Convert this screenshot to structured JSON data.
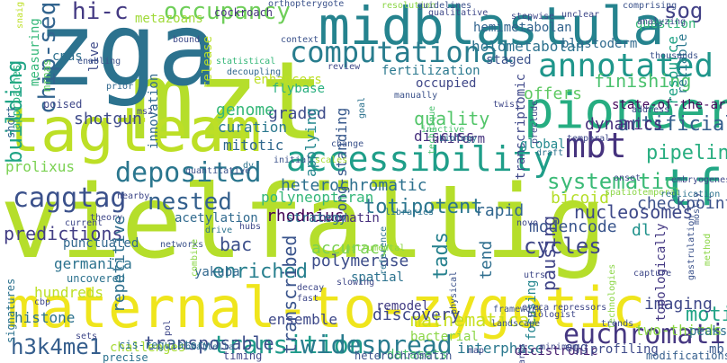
{
  "words": [
    {
      "t": "vielfältig",
      "c": "#b5de2b"
    },
    {
      "t": "mzt",
      "c": "#b5de2b"
    },
    {
      "t": "zga",
      "c": "#2c728e"
    },
    {
      "t": "maternal-to-zygotic",
      "c": "#efe51c"
    },
    {
      "t": "tagteam",
      "c": "#bddf26"
    },
    {
      "t": "pioneer",
      "c": "#26ad81"
    },
    {
      "t": "midblastula",
      "c": "#25838e"
    },
    {
      "t": "accessibility",
      "c": "#1f9e89"
    },
    {
      "t": "mbt",
      "c": "#46337e"
    },
    {
      "t": "tfs",
      "c": "#22a785"
    },
    {
      "t": "annotated",
      "c": "#1f968b"
    },
    {
      "t": "computational",
      "c": "#287d8e"
    },
    {
      "t": "euchromatic",
      "c": "#453781"
    },
    {
      "t": "transition",
      "c": "#1f9a8a"
    },
    {
      "t": "widespread",
      "c": "#297b8e"
    },
    {
      "t": "caggtag",
      "c": "#3b518b"
    },
    {
      "t": "deposited",
      "c": "#2a768e"
    },
    {
      "t": "hi-c",
      "c": "#443a83"
    },
    {
      "t": "sog",
      "c": "#424186"
    },
    {
      "t": "building",
      "c": "#20a486"
    },
    {
      "t": "chip-seq",
      "c": "#32648e"
    },
    {
      "t": "occupancy",
      "c": "#6ece58"
    },
    {
      "t": "graded",
      "c": "#3e4c8a"
    },
    {
      "t": "nested",
      "c": "#34608d"
    },
    {
      "t": "predictions",
      "c": "#433e85"
    },
    {
      "t": "heterochromatic",
      "c": "#2d708e"
    },
    {
      "t": "systematic",
      "c": "#3aba76"
    },
    {
      "t": "quality",
      "c": "#52c569"
    },
    {
      "t": "offers",
      "c": "#5ec962"
    },
    {
      "t": "finishing",
      "c": "#4ac16d"
    },
    {
      "t": "artificial",
      "c": "#355f8d"
    },
    {
      "t": "pipeline",
      "c": "#28ae80"
    },
    {
      "t": "checkpoint",
      "c": "#3b528b"
    },
    {
      "t": "h3k4me1",
      "c": "#355e8d"
    },
    {
      "t": "motifs",
      "c": "#20a386"
    },
    {
      "t": "tads",
      "c": "#26818e"
    },
    {
      "t": "totipotent",
      "c": "#2b758e"
    },
    {
      "t": "modencode",
      "c": "#39558c"
    },
    {
      "t": "cycles",
      "c": "#3f4788"
    },
    {
      "t": "pausing",
      "c": "#404588"
    },
    {
      "t": "imaging",
      "c": "#3f4889"
    },
    {
      "t": "mathematical",
      "c": "#c8e020"
    },
    {
      "t": "enriched",
      "c": "#277f8e"
    },
    {
      "t": "transposable",
      "c": "#3d4e8a"
    },
    {
      "t": "bac",
      "c": "#3c4f8a"
    },
    {
      "t": "rhodnius",
      "c": "#440154"
    },
    {
      "t": "polyneopteran",
      "c": "#35b779"
    },
    {
      "t": "genome",
      "c": "#35b779"
    },
    {
      "t": "curation",
      "c": "#2a788e"
    },
    {
      "t": "mitotic",
      "c": "#31688e"
    },
    {
      "t": "shotgun",
      "c": "#3e4a89"
    },
    {
      "t": "dynamics",
      "c": "#472d7b"
    },
    {
      "t": "nucleosomes",
      "c": "#3e4989"
    },
    {
      "t": "bicoid",
      "c": "#b5de2b"
    },
    {
      "t": "rapid",
      "c": "#31668e"
    },
    {
      "t": "accuracy",
      "c": "#7ad151"
    },
    {
      "t": "discovery",
      "c": "#3f4889"
    },
    {
      "t": "transcribed",
      "c": "#3a548c"
    },
    {
      "t": "polymerase",
      "c": "#3d4d8a"
    },
    {
      "t": "repetitive",
      "c": "#2e6f8e"
    },
    {
      "t": "long-standing",
      "c": "#38598c"
    },
    {
      "t": "discuss",
      "c": "#472f7d"
    },
    {
      "t": "applying",
      "c": "#24878e"
    },
    {
      "t": "fertilization",
      "c": "#2a788e"
    },
    {
      "t": "blastoderm",
      "c": "#306a8e"
    },
    {
      "t": "flybase",
      "c": "#29af7f"
    },
    {
      "t": "measuring",
      "c": "#35b779"
    },
    {
      "t": "cnas",
      "c": "#2d708e"
    },
    {
      "t": "live",
      "c": "#3e4a89"
    },
    {
      "t": "approaches",
      "c": "#2ab07f"
    },
    {
      "t": "metazoans",
      "c": "#a0da39"
    },
    {
      "t": "innovation",
      "c": "#31688e"
    },
    {
      "t": "release",
      "c": "#b8de29"
    },
    {
      "t": "prolixus",
      "c": "#7ad151"
    },
    {
      "t": "yakuba",
      "c": "#31688e"
    },
    {
      "t": "focusing",
      "c": "#25858e"
    },
    {
      "t": "dl",
      "c": "#20928c"
    },
    {
      "t": "tend",
      "c": "#2e6e8e"
    },
    {
      "t": "topologically",
      "c": "#443983"
    },
    {
      "t": "ensemble",
      "c": "#3e4989"
    },
    {
      "t": "remodel",
      "c": "#433d84"
    },
    {
      "t": "interphase",
      "c": "#2a788e"
    },
    {
      "t": "dicistronic",
      "c": "#481f70"
    },
    {
      "t": "mb",
      "c": "#38588c"
    },
    {
      "t": "two-thirds",
      "c": "#8bd646"
    },
    {
      "t": "spatial",
      "c": "#2c728e"
    },
    {
      "t": "chromatin",
      "c": "#472f7d"
    },
    {
      "t": "enhancers",
      "c": "#bddf26"
    },
    {
      "t": "state-of-the-art",
      "c": "#46085c"
    },
    {
      "t": "hemimetabolan",
      "c": "#32648e"
    },
    {
      "t": "holometabolan",
      "c": "#2c728e"
    },
    {
      "t": "transcriptomic",
      "c": "#3f4889"
    },
    {
      "t": "staged",
      "c": "#3b528b"
    },
    {
      "t": "occupied",
      "c": "#3f4788"
    },
    {
      "t": "uniform",
      "c": "#46337e"
    },
    {
      "t": "global",
      "c": "#23898e"
    },
    {
      "t": "question",
      "c": "#35b779"
    },
    {
      "t": "resource",
      "c": "#20a386"
    },
    {
      "t": "reliable",
      "c": "#2a788e"
    },
    {
      "t": "acetylation",
      "c": "#306a8e"
    },
    {
      "t": "hundreds",
      "c": "#bddf26"
    },
    {
      "t": "germanica",
      "c": "#2c728e"
    },
    {
      "t": "histone",
      "c": "#2c728e"
    },
    {
      "t": "challenges",
      "c": "#a8db34"
    },
    {
      "t": "datasets",
      "c": "#4ac16d"
    },
    {
      "t": "bacterial",
      "c": "#8bd646"
    },
    {
      "t": "strategy",
      "c": "#2c728e"
    },
    {
      "t": "egg",
      "c": "#3f4889"
    },
    {
      "t": "peaks",
      "c": "#2e6f8e"
    },
    {
      "t": "profiling",
      "c": "#3e4a89"
    },
    {
      "t": "modifications",
      "c": "#355f8d"
    },
    {
      "t": "heterochromatin",
      "c": "#3b528b"
    },
    {
      "t": "blattella",
      "c": "#31688e"
    },
    {
      "t": "cis-regulatory",
      "c": "#2c728e"
    },
    {
      "t": "precise",
      "c": "#2c728e"
    },
    {
      "t": "timing",
      "c": "#3f4889"
    },
    {
      "t": "uncovered",
      "c": "#2c728e"
    },
    {
      "t": "punctuated",
      "c": "#31688e"
    },
    {
      "t": "short",
      "c": "#32648e"
    },
    {
      "t": "signatures",
      "c": "#2c728e"
    },
    {
      "t": "poised",
      "c": "#3f4889"
    },
    {
      "t": "mrnas",
      "c": "#5ec962"
    },
    {
      "t": "orthopterygote",
      "c": "#3b528b"
    },
    {
      "t": "cockroach",
      "c": "#46337e"
    },
    {
      "t": "enabling",
      "c": "#3b528b"
    },
    {
      "t": "bound",
      "c": "#3e4a89"
    },
    {
      "t": "prior",
      "c": "#31688e"
    },
    {
      "t": "ms2",
      "c": "#3e4a89"
    },
    {
      "t": "statistical",
      "c": "#35b779"
    },
    {
      "t": "decoupling",
      "c": "#31688e"
    },
    {
      "t": "review",
      "c": "#3f4889"
    },
    {
      "t": "context",
      "c": "#3b528b"
    },
    {
      "t": "resolution",
      "c": "#8bd646"
    },
    {
      "t": "guidelines",
      "c": "#3b528b"
    },
    {
      "t": "qualitative",
      "c": "#3f4889"
    },
    {
      "t": "stepwise",
      "c": "#3f4889"
    },
    {
      "t": "unclear",
      "c": "#3f4889"
    },
    {
      "t": "comprising",
      "c": "#3b528b"
    },
    {
      "t": "analyzing",
      "c": "#3f4889"
    },
    {
      "t": "thousands",
      "c": "#3b528b"
    },
    {
      "t": "address",
      "c": "#3f4889"
    },
    {
      "t": "preclude",
      "c": "#3f4889"
    },
    {
      "t": "twist",
      "c": "#3f4889"
    },
    {
      "t": "technique",
      "c": "#4ac16d"
    },
    {
      "t": "manually",
      "c": "#3b528b"
    },
    {
      "t": "goal",
      "c": "#2c728e"
    },
    {
      "t": "inactive",
      "c": "#4ac16d"
    },
    {
      "t": "temporal",
      "c": "#3f4889"
    },
    {
      "t": "draft",
      "c": "#2c728e"
    },
    {
      "t": "biology",
      "c": "#2c728e"
    },
    {
      "t": "change",
      "c": "#3b528b"
    },
    {
      "t": "scales",
      "c": "#a8db34"
    },
    {
      "t": "initial",
      "c": "#3b528b"
    },
    {
      "t": "dv",
      "c": "#2c728e"
    },
    {
      "t": "quantitative",
      "c": "#3b528b"
    },
    {
      "t": "nearby",
      "c": "#3f4889"
    },
    {
      "t": "hubs",
      "c": "#3f4889"
    },
    {
      "t": "libraries",
      "c": "#2c728e"
    },
    {
      "t": "onset",
      "c": "#3f4889"
    },
    {
      "t": "spatiotemporal",
      "c": "#8bd646"
    },
    {
      "t": "replication",
      "c": "#2c728e"
    },
    {
      "t": "embryogenesis",
      "c": "#3f4889"
    },
    {
      "t": "theory",
      "c": "#3f4889"
    },
    {
      "t": "current",
      "c": "#3f4889"
    },
    {
      "t": "drive",
      "c": "#2c728e"
    },
    {
      "t": "novo",
      "c": "#3f4889"
    },
    {
      "t": "networks",
      "c": "#3b528b"
    },
    {
      "t": "cbp",
      "c": "#3f4889"
    },
    {
      "t": "combine",
      "c": "#8bd646"
    },
    {
      "t": "decay",
      "c": "#3f4889"
    },
    {
      "t": "fast",
      "c": "#3f4889"
    },
    {
      "t": "reference",
      "c": "#2c728e"
    },
    {
      "t": "physical",
      "c": "#3b528b"
    },
    {
      "t": "utrs",
      "c": "#3f4889"
    },
    {
      "t": "biologist",
      "c": "#3f4889"
    },
    {
      "t": "landscape",
      "c": "#3b528b"
    },
    {
      "t": "technologies",
      "c": "#8bd646"
    },
    {
      "t": "capture",
      "c": "#3f4889"
    },
    {
      "t": "gastrulation",
      "c": "#3b528b"
    },
    {
      "t": "repressors",
      "c": "#3f4889"
    },
    {
      "t": "framework",
      "c": "#3b528b"
    },
    {
      "t": "ereca",
      "c": "#3f4889"
    },
    {
      "t": "map",
      "c": "#3f4889"
    },
    {
      "t": "marks",
      "c": "#3f4889"
    },
    {
      "t": "minimum",
      "c": "#3f4889"
    },
    {
      "t": "instrumental",
      "c": "#8bd646"
    },
    {
      "t": "slowing",
      "c": "#3f4889"
    },
    {
      "t": "sets",
      "c": "#3f4889"
    },
    {
      "t": "pol",
      "c": "#3f4889"
    },
    {
      "t": "method",
      "c": "#8bd646"
    },
    {
      "t": "trends",
      "c": "#3b528b"
    },
    {
      "t": "mostly",
      "c": "#3b528b"
    },
    {
      "t": "snaig",
      "c": "#bddf26"
    },
    {
      "t": "broad",
      "c": "#3f4889"
    },
    {
      "t": "nucleus",
      "c": "#3b528b"
    },
    {
      "t": "shipped",
      "c": "#3f4889"
    },
    {
      "t": "experimentally",
      "c": "#3f4889"
    }
  ]
}
